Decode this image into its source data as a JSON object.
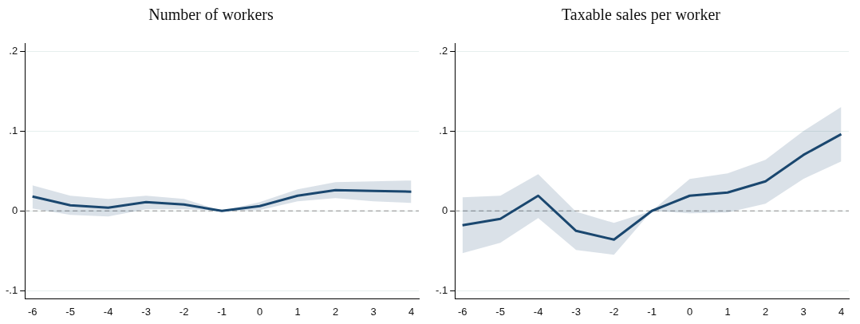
{
  "chart_data": [
    {
      "type": "line",
      "title": "Number of workers",
      "x": [
        -6,
        -5,
        -4,
        -3,
        -2,
        -1,
        0,
        1,
        2,
        3,
        4
      ],
      "xlim": [
        -6.2,
        4.2
      ],
      "xticks": [
        -6,
        -5,
        -4,
        -3,
        -2,
        -1,
        0,
        1,
        2,
        3,
        4
      ],
      "ylim": [
        -0.11,
        0.21
      ],
      "yticks": [
        {
          "value": -0.1,
          "label": "-.1"
        },
        0,
        {
          "value": 0.1,
          "label": ".1"
        },
        {
          "value": 0.2,
          "label": ".2"
        }
      ],
      "grid": "y",
      "legend": false,
      "marker": "none",
      "line_style": "solid",
      "series": [
        {
          "color": "#1a476f",
          "values": [
            0.018,
            0.007,
            0.004,
            0.011,
            0.008,
            0,
            0.006,
            0.019,
            0.026,
            0.025,
            0.024
          ],
          "lower": [
            0.003,
            -0.005,
            -0.007,
            0.002,
            0.002,
            0,
            0.001,
            0.012,
            0.016,
            0.012,
            0.01
          ],
          "upper": [
            0.032,
            0.019,
            0.015,
            0.019,
            0.015,
            0,
            0.011,
            0.027,
            0.036,
            0.037,
            0.038
          ]
        }
      ],
      "ref_lines": [
        {
          "axis": "y",
          "value": 0,
          "color": "#8c8c8c",
          "line_style": "dashed"
        }
      ]
    },
    {
      "type": "line",
      "title": "Taxable sales per worker",
      "x": [
        -6,
        -5,
        -4,
        -3,
        -2,
        -1,
        0,
        1,
        2,
        3,
        4
      ],
      "xlim": [
        -6.2,
        4.2
      ],
      "xticks": [
        -6,
        -5,
        -4,
        -3,
        -2,
        -1,
        0,
        1,
        2,
        3,
        4
      ],
      "ylim": [
        -0.11,
        0.21
      ],
      "yticks": [
        {
          "value": -0.1,
          "label": "-.1"
        },
        0,
        {
          "value": 0.1,
          "label": ".1"
        },
        {
          "value": 0.2,
          "label": ".2"
        }
      ],
      "grid": "y",
      "legend": false,
      "marker": "none",
      "line_style": "solid",
      "series": [
        {
          "color": "#1a476f",
          "values": [
            -0.018,
            -0.01,
            0.019,
            -0.025,
            -0.036,
            0,
            0.019,
            0.023,
            0.037,
            0.07,
            0.096
          ],
          "lower": [
            -0.053,
            -0.04,
            -0.009,
            -0.049,
            -0.055,
            0,
            -0.003,
            -0.002,
            0.009,
            0.04,
            0.062
          ],
          "upper": [
            0.017,
            0.019,
            0.046,
            -0.001,
            -0.015,
            0,
            0.04,
            0.047,
            0.064,
            0.1,
            0.13
          ]
        }
      ],
      "ref_lines": [
        {
          "axis": "y",
          "value": 0,
          "color": "#8c8c8c",
          "line_style": "dashed"
        }
      ]
    }
  ]
}
